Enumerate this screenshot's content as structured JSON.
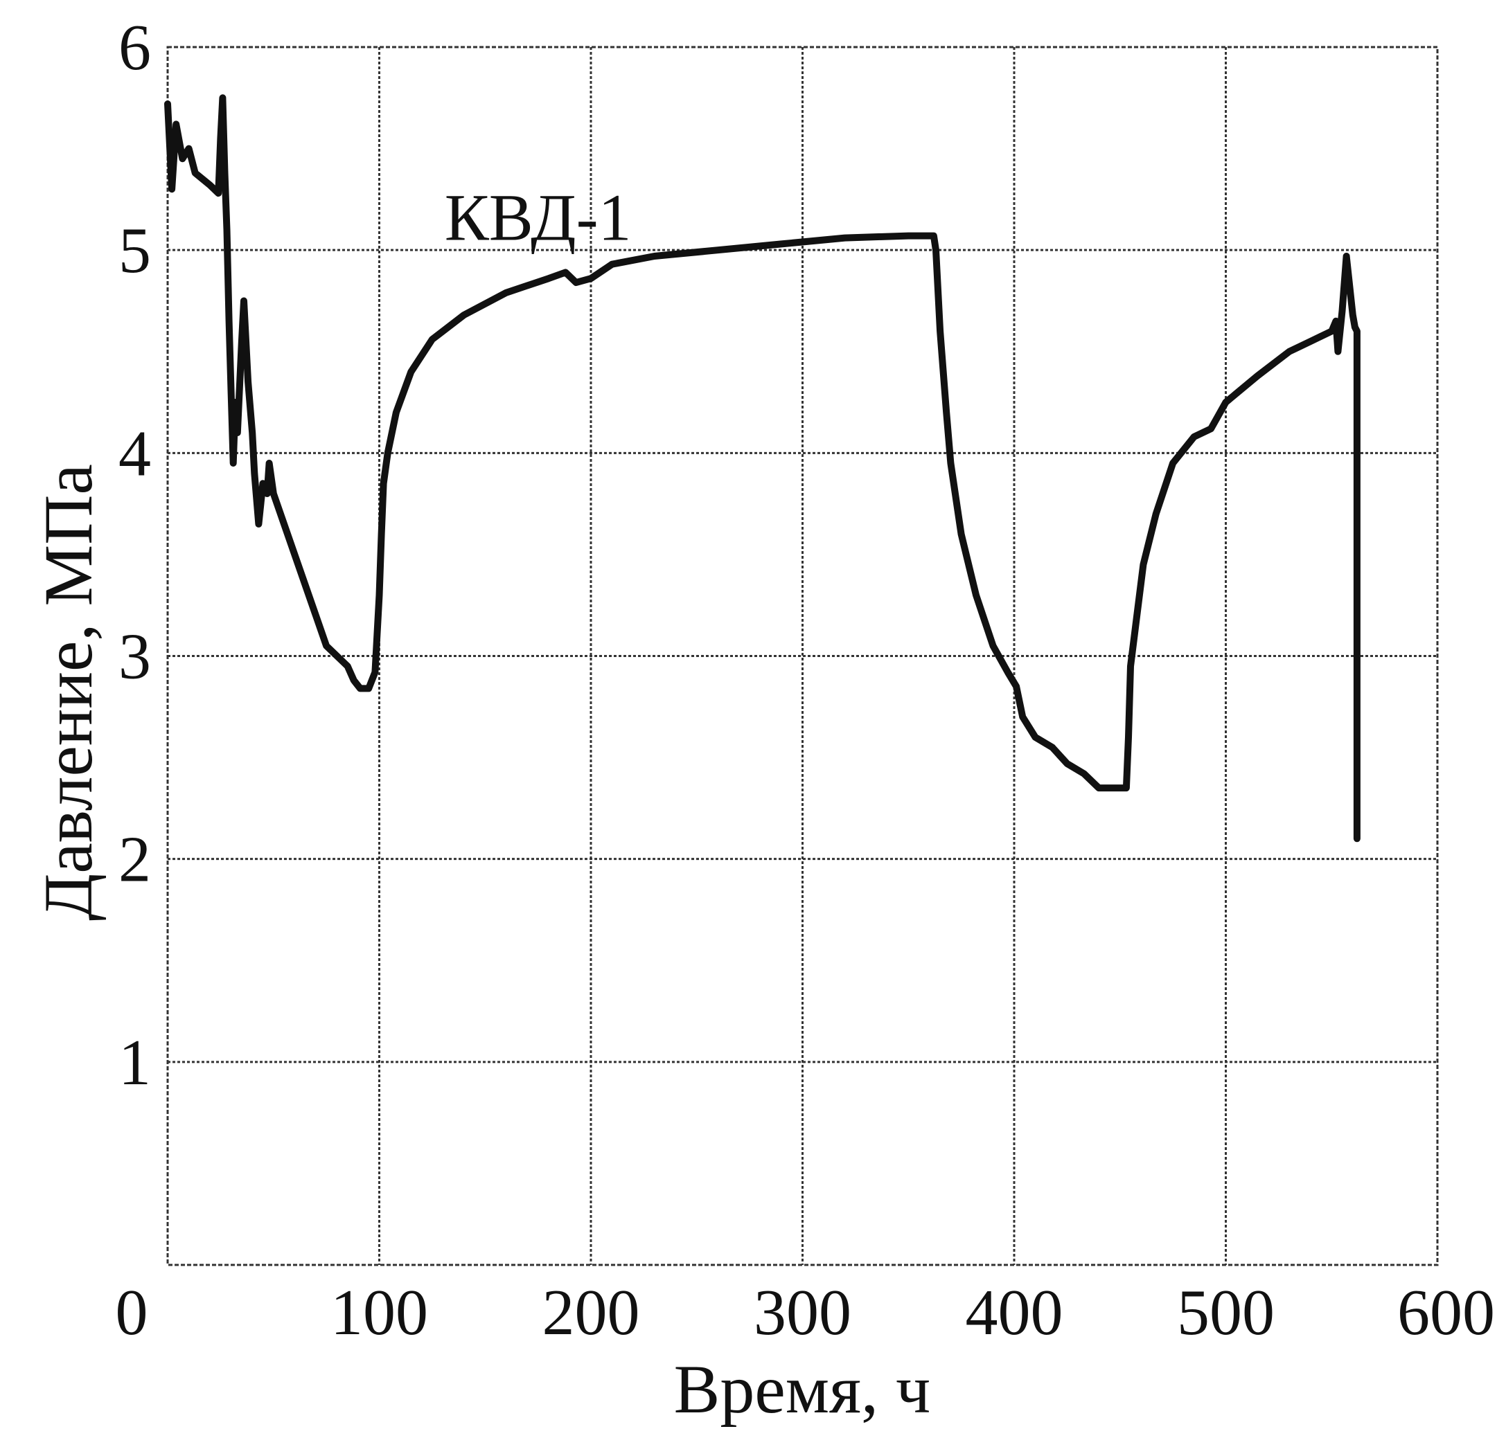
{
  "chart_data": {
    "type": "line",
    "title": "",
    "xlabel": "Время, ч",
    "ylabel": "Давление, МПа",
    "xlim": [
      0,
      600
    ],
    "ylim": [
      0,
      6
    ],
    "grid": true,
    "x_ticks": [
      "0",
      "100",
      "200",
      "300",
      "400",
      "500",
      "600"
    ],
    "x_tick_values": [
      0,
      100,
      200,
      300,
      400,
      500,
      600
    ],
    "y_ticks": [
      "1",
      "2",
      "3",
      "4",
      "5",
      "6"
    ],
    "y_tick_values": [
      1,
      2,
      3,
      4,
      5,
      6
    ],
    "annotation": {
      "text": "КВД-1",
      "x": 175,
      "y": 5.05
    },
    "series": [
      {
        "color": "#111111",
        "points": [
          [
            0,
            5.72
          ],
          [
            2,
            5.3
          ],
          [
            4,
            5.62
          ],
          [
            7,
            5.45
          ],
          [
            10,
            5.5
          ],
          [
            13,
            5.38
          ],
          [
            20,
            5.32
          ],
          [
            24,
            5.28
          ],
          [
            25,
            5.55
          ],
          [
            26,
            5.75
          ],
          [
            27,
            5.38
          ],
          [
            28,
            5.1
          ],
          [
            29,
            4.65
          ],
          [
            30,
            4.3
          ],
          [
            31,
            3.95
          ],
          [
            32,
            4.25
          ],
          [
            33,
            4.1
          ],
          [
            35,
            4.55
          ],
          [
            36,
            4.75
          ],
          [
            38,
            4.35
          ],
          [
            40,
            4.1
          ],
          [
            41,
            3.9
          ],
          [
            43,
            3.65
          ],
          [
            45,
            3.85
          ],
          [
            47,
            3.8
          ],
          [
            48,
            3.95
          ],
          [
            50,
            3.8
          ],
          [
            60,
            3.5
          ],
          [
            70,
            3.2
          ],
          [
            75,
            3.05
          ],
          [
            85,
            2.95
          ],
          [
            88,
            2.88
          ],
          [
            91,
            2.84
          ],
          [
            95,
            2.84
          ],
          [
            98,
            2.92
          ],
          [
            100,
            3.3
          ],
          [
            101,
            3.6
          ],
          [
            102,
            3.85
          ],
          [
            104,
            4.0
          ],
          [
            108,
            4.2
          ],
          [
            115,
            4.4
          ],
          [
            125,
            4.56
          ],
          [
            140,
            4.68
          ],
          [
            160,
            4.79
          ],
          [
            180,
            4.86
          ],
          [
            188,
            4.89
          ],
          [
            193,
            4.84
          ],
          [
            200,
            4.86
          ],
          [
            210,
            4.93
          ],
          [
            230,
            4.97
          ],
          [
            260,
            5.0
          ],
          [
            290,
            5.03
          ],
          [
            320,
            5.06
          ],
          [
            350,
            5.07
          ],
          [
            362,
            5.07
          ],
          [
            363,
            5.0
          ],
          [
            365,
            4.6
          ],
          [
            368,
            4.2
          ],
          [
            370,
            3.95
          ],
          [
            375,
            3.6
          ],
          [
            382,
            3.3
          ],
          [
            390,
            3.05
          ],
          [
            397,
            2.92
          ],
          [
            401,
            2.85
          ],
          [
            404,
            2.7
          ],
          [
            410,
            2.6
          ],
          [
            418,
            2.55
          ],
          [
            425,
            2.47
          ],
          [
            433,
            2.42
          ],
          [
            440,
            2.35
          ],
          [
            453,
            2.35
          ],
          [
            454,
            2.6
          ],
          [
            455,
            2.95
          ],
          [
            458,
            3.2
          ],
          [
            461,
            3.45
          ],
          [
            467,
            3.7
          ],
          [
            475,
            3.95
          ],
          [
            485,
            4.08
          ],
          [
            493,
            4.12
          ],
          [
            500,
            4.25
          ],
          [
            515,
            4.38
          ],
          [
            530,
            4.5
          ],
          [
            540,
            4.55
          ],
          [
            550,
            4.6
          ],
          [
            552,
            4.65
          ],
          [
            553,
            4.5
          ],
          [
            555,
            4.7
          ],
          [
            557,
            4.97
          ],
          [
            560,
            4.68
          ],
          [
            561,
            4.62
          ],
          [
            562,
            4.6
          ],
          [
            562,
            4.0
          ],
          [
            562,
            3.0
          ],
          [
            562,
            2.1
          ]
        ]
      }
    ]
  }
}
